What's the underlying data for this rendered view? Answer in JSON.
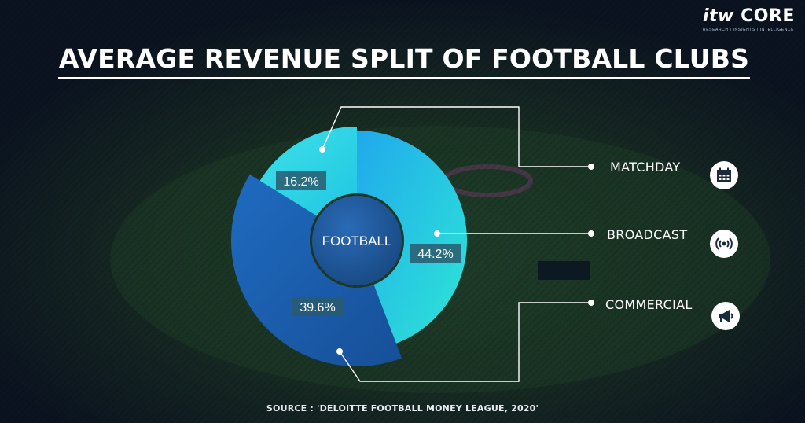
{
  "logo": {
    "brand_itw": "itw",
    "brand_core": "CORE",
    "tagline": "RESEARCH | INSIGHTS | INTELLIGENCE"
  },
  "title": "AVERAGE REVENUE SPLIT OF FOOTBALL CLUBS",
  "center_label": "FOOTBALL",
  "source": "SOURCE :  'DELOITTE FOOTBALL MONEY LEAGUE, 2020'",
  "colors": {
    "matchday": "#2fd6e6",
    "broadcast": "#25c8e6",
    "commercial": "#1c5fb3",
    "center": "#1d5aa0",
    "label_box": "#2a5a6e"
  },
  "chart_data": {
    "type": "pie",
    "title": "AVERAGE REVENUE SPLIT OF FOOTBALL CLUBS",
    "categories": [
      "MATCHDAY",
      "BROADCAST",
      "COMMERCIAL"
    ],
    "values": [
      16.2,
      44.2,
      39.6
    ],
    "labels": [
      "16.2%",
      "44.2%",
      "39.6%"
    ],
    "icons": [
      "calendar-icon",
      "broadcast-icon",
      "megaphone-icon"
    ],
    "legend": "right"
  }
}
